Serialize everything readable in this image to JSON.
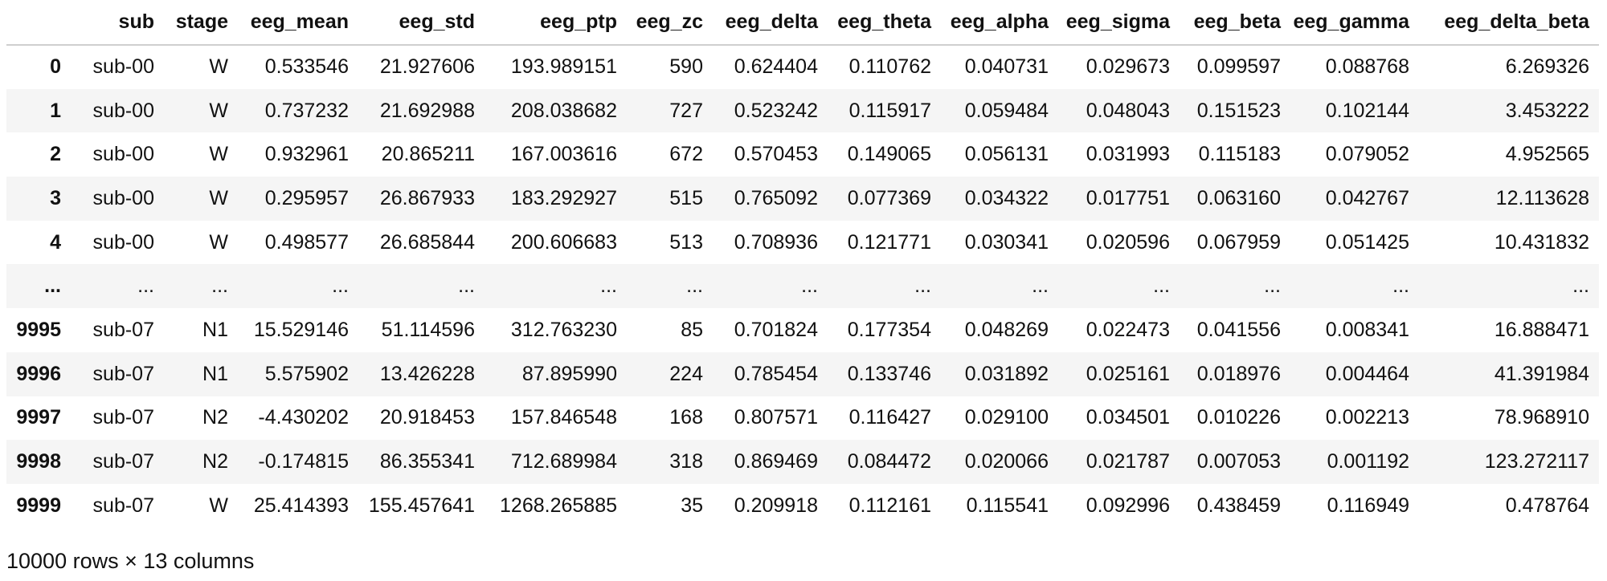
{
  "dataframe": {
    "columns": [
      "",
      "sub",
      "stage",
      "eeg_mean",
      "eeg_std",
      "eeg_ptp",
      "eeg_zc",
      "eeg_delta",
      "eeg_theta",
      "eeg_alpha",
      "eeg_sigma",
      "eeg_beta",
      "eeg_gamma",
      "eeg_delta_beta"
    ],
    "rows": [
      [
        "0",
        "sub-00",
        "W",
        "0.533546",
        "21.927606",
        "193.989151",
        "590",
        "0.624404",
        "0.110762",
        "0.040731",
        "0.029673",
        "0.099597",
        "0.088768",
        "6.269326"
      ],
      [
        "1",
        "sub-00",
        "W",
        "0.737232",
        "21.692988",
        "208.038682",
        "727",
        "0.523242",
        "0.115917",
        "0.059484",
        "0.048043",
        "0.151523",
        "0.102144",
        "3.453222"
      ],
      [
        "2",
        "sub-00",
        "W",
        "0.932961",
        "20.865211",
        "167.003616",
        "672",
        "0.570453",
        "0.149065",
        "0.056131",
        "0.031993",
        "0.115183",
        "0.079052",
        "4.952565"
      ],
      [
        "3",
        "sub-00",
        "W",
        "0.295957",
        "26.867933",
        "183.292927",
        "515",
        "0.765092",
        "0.077369",
        "0.034322",
        "0.017751",
        "0.063160",
        "0.042767",
        "12.113628"
      ],
      [
        "4",
        "sub-00",
        "W",
        "0.498577",
        "26.685844",
        "200.606683",
        "513",
        "0.708936",
        "0.121771",
        "0.030341",
        "0.020596",
        "0.067959",
        "0.051425",
        "10.431832"
      ],
      [
        "...",
        "...",
        "...",
        "...",
        "...",
        "...",
        "...",
        "...",
        "...",
        "...",
        "...",
        "...",
        "...",
        "..."
      ],
      [
        "9995",
        "sub-07",
        "N1",
        "15.529146",
        "51.114596",
        "312.763230",
        "85",
        "0.701824",
        "0.177354",
        "0.048269",
        "0.022473",
        "0.041556",
        "0.008341",
        "16.888471"
      ],
      [
        "9996",
        "sub-07",
        "N1",
        "5.575902",
        "13.426228",
        "87.895990",
        "224",
        "0.785454",
        "0.133746",
        "0.031892",
        "0.025161",
        "0.018976",
        "0.004464",
        "41.391984"
      ],
      [
        "9997",
        "sub-07",
        "N2",
        "-4.430202",
        "20.918453",
        "157.846548",
        "168",
        "0.807571",
        "0.116427",
        "0.029100",
        "0.034501",
        "0.010226",
        "0.002213",
        "78.968910"
      ],
      [
        "9998",
        "sub-07",
        "N2",
        "-0.174815",
        "86.355341",
        "712.689984",
        "318",
        "0.869469",
        "0.084472",
        "0.020066",
        "0.021787",
        "0.007053",
        "0.001192",
        "123.272117"
      ],
      [
        "9999",
        "sub-07",
        "W",
        "25.414393",
        "155.457641",
        "1268.265885",
        "35",
        "0.209918",
        "0.112161",
        "0.115541",
        "0.092996",
        "0.438459",
        "0.116949",
        "0.478764"
      ]
    ],
    "summary": "10000 rows × 13 columns"
  }
}
